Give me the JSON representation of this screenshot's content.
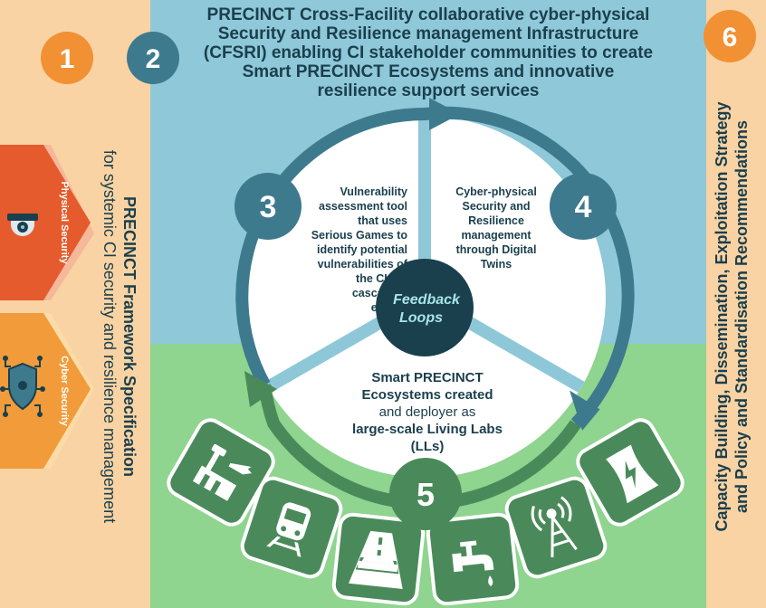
{
  "colors": {
    "left_panel": "#f9d3a3",
    "right_panel": "#f9d3a3",
    "top_bg": "#8fc8d8",
    "bottom_bg": "#8fd48f",
    "orange_badge": "#f29133",
    "teal_badge": "#3d7a8e",
    "dark_teal": "#1a3f4d",
    "ring_top": "#3d7a8e",
    "ring_bottom": "#4a8a5a",
    "spoke": "#8ec8d8",
    "physical_security": "#e55b2d",
    "cyber_security": "#f29b3a",
    "feedback_text": "#a8e6e6"
  },
  "badges": {
    "b1": "1",
    "b2": "2",
    "b3": "3",
    "b4": "4",
    "b5": "5",
    "b6": "6"
  },
  "header": {
    "line1": "PRECINCT Cross-Facility collaborative cyber-physical",
    "line2": "Security and Resilience management Infrastructure",
    "line3": "(CFSRI) enabling CI stakeholder communities to create",
    "line4": "Smart PRECINCT  Ecosystems and innovative",
    "line5": "resilience support services"
  },
  "left_panel": {
    "line1": "PRECINCT Framework Specification",
    "line2": "for systemic  CI security and resilience management"
  },
  "right_panel": {
    "line1": "Capacity Building, Dissemination, Exploitation Strategy",
    "line2": "and Policy and Standardisation Recommendations"
  },
  "tabs": {
    "physical": "Physical Security",
    "cyber": "Cyber Security"
  },
  "segment3": {
    "line1": "Vulnerability",
    "line2": "assessment tool",
    "line3": "that uses",
    "line4": "Serious Games to",
    "line5": "identify potential",
    "line6": "vulnerabilities of",
    "line7": "the CIs to",
    "line8": "cascading",
    "line9": "effects"
  },
  "segment4": {
    "line1": "Cyber-physical",
    "line2": "Security and",
    "line3": "Resilience",
    "line4": "management",
    "line5": "through Digital",
    "line6": "Twins"
  },
  "segment5": {
    "line1": "Smart PRECINCT",
    "line2": "Ecosystems created",
    "line3": "and deployer as",
    "line4": "large-scale Living Labs",
    "line5": "(LLs)"
  },
  "center": {
    "line1": "Feedback",
    "line2": "Loops"
  },
  "infrastructure_icons": [
    "airport-icon",
    "train-icon",
    "road-icon",
    "water-tap-icon",
    "telecom-tower-icon",
    "power-plant-icon"
  ]
}
